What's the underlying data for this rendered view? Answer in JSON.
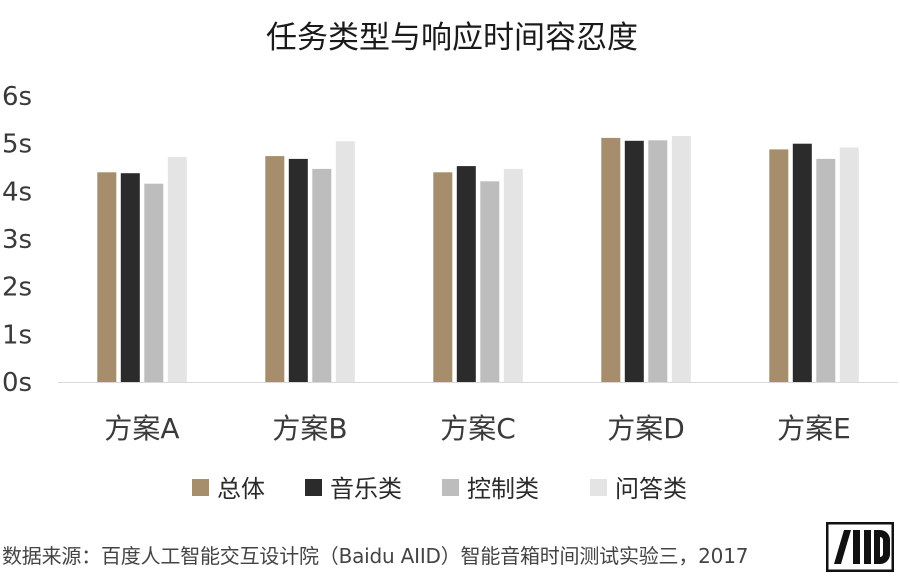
{
  "chart_data": {
    "type": "bar",
    "title": "任务类型与响应时间容忍度",
    "xlabel": "",
    "ylabel": "",
    "categories": [
      "方案A",
      "方案B",
      "方案C",
      "方案D",
      "方案E"
    ],
    "y_ticks": [
      "0s",
      "1s",
      "2s",
      "3s",
      "4s",
      "5s",
      "6s"
    ],
    "ylim": [
      0,
      6
    ],
    "grid": false,
    "legend_position": "bottom",
    "series": [
      {
        "name": "总体",
        "color": "#a68e6c",
        "values": [
          4.4,
          4.74,
          4.4,
          5.12,
          4.88
        ]
      },
      {
        "name": "音乐类",
        "color": "#2b2b2b",
        "values": [
          4.38,
          4.68,
          4.53,
          5.06,
          5.0
        ]
      },
      {
        "name": "控制类",
        "color": "#bdbdbd",
        "values": [
          4.16,
          4.47,
          4.21,
          5.07,
          4.68
        ]
      },
      {
        "name": "问答类",
        "color": "#e4e4e4",
        "values": [
          4.72,
          5.05,
          4.47,
          5.16,
          4.92
        ]
      }
    ]
  },
  "footer": {
    "source": "数据来源：百度人工智能交互设计院（Baidu AIID）智能音箱时间测试实验三，2017",
    "logo_text": "AIID"
  }
}
